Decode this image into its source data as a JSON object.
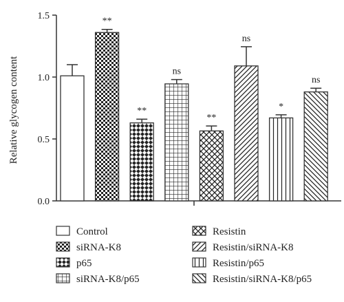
{
  "chart_data": {
    "type": "bar",
    "title": "",
    "xlabel": "",
    "ylabel": "Relative glycogen content",
    "ylim": [
      0,
      1.5
    ],
    "yticks": [
      "0.0",
      "0.5",
      "1.0",
      "1.5"
    ],
    "grid": false,
    "legend_position": "bottom",
    "categories": [
      "Control",
      "siRNA-K8",
      "p65",
      "siRNA-K8/p65",
      "Resistin",
      "Resistin/siRNA-K8",
      "Resistin/p65",
      "Resistin/siRNA-K8/p65"
    ],
    "values": [
      1.01,
      1.36,
      0.63,
      0.945,
      0.565,
      1.09,
      0.67,
      0.88
    ],
    "errors": [
      0.09,
      0.025,
      0.03,
      0.035,
      0.04,
      0.155,
      0.025,
      0.03
    ],
    "significance": [
      "",
      "**",
      "**",
      "ns",
      "**",
      "ns",
      "*",
      "ns"
    ],
    "patterns": [
      "none",
      "checker",
      "diamond",
      "grid",
      "crosshatch",
      "diagonal",
      "vertical",
      "backdiagonal"
    ],
    "colors": {
      "bar_stroke": "#333333",
      "fill": "#ffffff"
    }
  }
}
